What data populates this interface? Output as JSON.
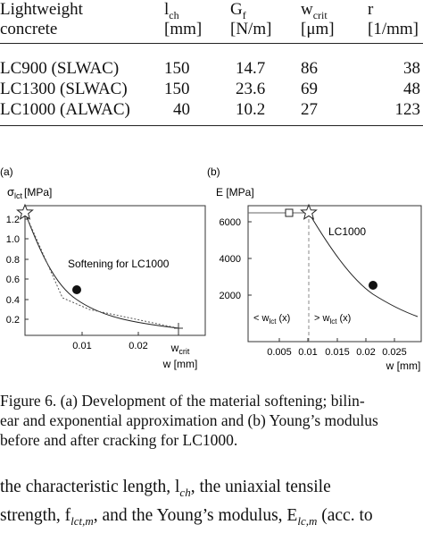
{
  "table": {
    "headers": {
      "col1_line1": "Lightweight",
      "col1_line2": "concrete",
      "col2_sym": "l",
      "col2_sub": "ch",
      "col2_unit": "[mm]",
      "col3_sym": "G",
      "col3_sub": "f",
      "col3_unit": "[N/m]",
      "col4_sym": "w",
      "col4_sub": "crit",
      "col4_unit": "[μm]",
      "col5_sym": "r",
      "col5_unit": "[1/mm]"
    },
    "rows": [
      {
        "name": "LC900 (SLWAC)",
        "lch": "150",
        "gf": "14.7",
        "wcrit": "86",
        "r": "38"
      },
      {
        "name": "LC1300 (SLWAC)",
        "lch": "150",
        "gf": "23.6",
        "wcrit": "69",
        "r": "48"
      },
      {
        "name": "LC1000 (ALWAC)",
        "lch": "40",
        "gf": "10.2",
        "wcrit": "27",
        "r": "123"
      }
    ]
  },
  "figure_a": {
    "panel_label": "(a)",
    "ylabel_sym": "σ",
    "ylabel_sub": "lct",
    "ylabel_unit": "[MPa]",
    "y_ticks": [
      "1.2",
      "1.0",
      "0.8",
      "0.6",
      "0.4",
      "0.2"
    ],
    "x_ticks": [
      "0.01",
      "0.02"
    ],
    "xlabel": "w [mm]",
    "wcrit_sym": "w",
    "wcrit_sub": "crit",
    "annotation": "Softening for LC1000"
  },
  "figure_b": {
    "panel_label": "(b)",
    "ylabel": "E [MPa]",
    "y_ticks": [
      "6000",
      "4000",
      "2000"
    ],
    "x_ticks": [
      "0.005",
      "0.01",
      "0.015",
      "0.02",
      "0.025"
    ],
    "xlabel": "w [mm]",
    "curve_label": "LC1000",
    "left_label_prefix": "< w",
    "left_label_sub": "lct",
    "left_label_suffix": " (x)",
    "right_label_prefix": "> w",
    "right_label_sub": "lct",
    "right_label_suffix": " (x)"
  },
  "caption": {
    "line1": "Figure 6.    (a) Development of the material softening; bilin-",
    "line2": "ear and exponential approximation and (b) Young’s modulus",
    "line3": "before and after cracking for LC1000."
  },
  "body": {
    "line1": "the characteristic length, l",
    "line1_sub": "ch",
    "line1_rest": ", the uniaxial tensile",
    "line2": "strength, f",
    "line2_sub": "lct,m",
    "line2_mid": ", and the Young’s modulus, E",
    "line2_sub2": "lc,m",
    "line2_rest": " (acc. to"
  }
}
